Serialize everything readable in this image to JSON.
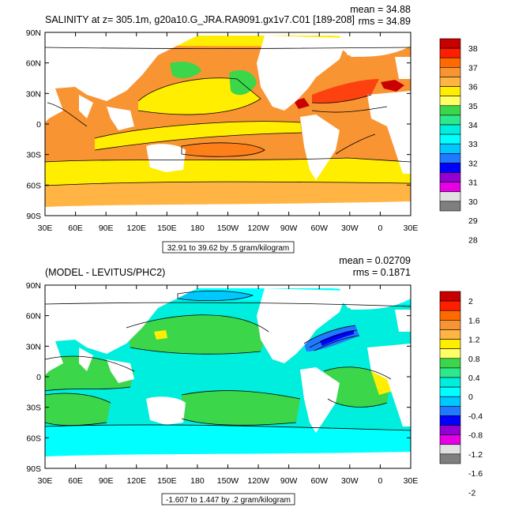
{
  "chart_data": [
    {
      "type": "heatmap",
      "title": "SALINITY at z= 305.1m, g20a10.G_JRA.RA9091.gx1v7.C01 [189-208]",
      "stats": {
        "mean": "mean = 34.88",
        "rms": "rms = 34.89"
      },
      "x_ticks": [
        "30E",
        "60E",
        "90E",
        "120E",
        "150E",
        "180",
        "150W",
        "120W",
        "90W",
        "60W",
        "30W",
        "0",
        "30E"
      ],
      "y_ticks": [
        "90N",
        "60N",
        "30N",
        "0",
        "30S",
        "60S",
        "90S"
      ],
      "xlim": [
        30,
        390
      ],
      "ylim": [
        -90,
        90
      ],
      "colorbar_levels": [
        "38",
        "37",
        "36",
        "35",
        "34",
        "33",
        "32",
        "31",
        "30",
        "29",
        "28"
      ],
      "colorbar_colors": [
        "#c80000",
        "#ff1e00",
        "#ff6a00",
        "#f99433",
        "#ffb444",
        "#ffee00",
        "#ffff66",
        "#3bd64a",
        "#2ee88c",
        "#00eedd",
        "#00ffff",
        "#00c8ff",
        "#1f7aff",
        "#0000ff",
        "#9400d3",
        "#e600e6",
        "#e1e1e1",
        "#7f7f7f"
      ],
      "range_label": "32.91 to 39.62 by .5 gram/kilogram",
      "value_range": [
        32.91,
        39.62
      ],
      "interval": 0.5,
      "units": "gram/kilogram"
    },
    {
      "type": "heatmap",
      "title": "(MODEL - LEVITUS/PHC2)",
      "stats": {
        "mean": "mean = 0.02709",
        "rms": "rms = 0.1871"
      },
      "x_ticks": [
        "30E",
        "60E",
        "90E",
        "120E",
        "150E",
        "180",
        "150W",
        "120W",
        "90W",
        "60W",
        "30W",
        "0",
        "30E"
      ],
      "y_ticks": [
        "90N",
        "60N",
        "30N",
        "0",
        "30S",
        "60S",
        "90S"
      ],
      "xlim": [
        30,
        390
      ],
      "ylim": [
        -90,
        90
      ],
      "colorbar_levels": [
        "2",
        "1.6",
        "1.2",
        "0.8",
        "0.4",
        "0",
        "-0.4",
        "-0.8",
        "-1.2",
        "-1.6",
        "-2"
      ],
      "colorbar_colors": [
        "#c80000",
        "#ff1e00",
        "#ff6a00",
        "#f99433",
        "#ffb444",
        "#ffee00",
        "#ffff66",
        "#3bd64a",
        "#2ee88c",
        "#00eedd",
        "#00ffff",
        "#00c8ff",
        "#1f7aff",
        "#0000ff",
        "#9400d3",
        "#e600e6",
        "#e1e1e1",
        "#7f7f7f"
      ],
      "range_label": "-1.607 to 1.447 by .2 gram/kilogram",
      "value_range": [
        -1.607,
        1.447
      ],
      "interval": 0.2,
      "units": "gram/kilogram"
    }
  ]
}
